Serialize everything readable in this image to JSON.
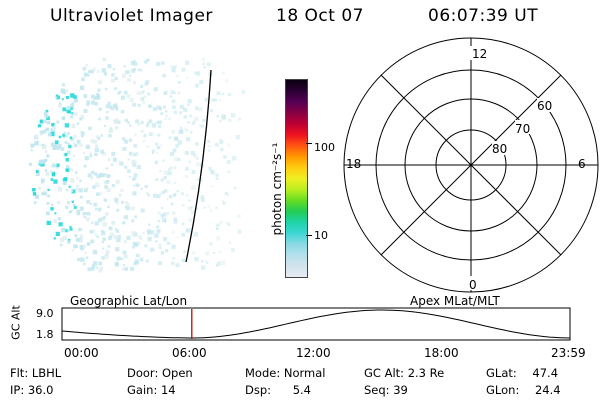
{
  "header": {
    "title": "Ultraviolet Imager",
    "date": "18 Oct 07",
    "time": "06:07:39 UT"
  },
  "colorbar": {
    "label": "photon cm⁻²s⁻¹",
    "ticks": [
      "100",
      "10"
    ],
    "scale": "log",
    "colors": [
      "#e6ebf2",
      "#d2e4ec",
      "#b4e0ea",
      "#8ad9e6",
      "#3ed6d4",
      "#1fd3a8",
      "#22cc55",
      "#66dd22",
      "#bbee22",
      "#eeee22",
      "#ffcc11",
      "#ff9900",
      "#ff5511",
      "#ee1122",
      "#bb0033",
      "#880044",
      "#550055",
      "#2a0033",
      "#0a0010"
    ]
  },
  "polar_plot": {
    "top_label": "12",
    "bottom_label": "0",
    "left_label": "18",
    "right_label": "6",
    "rings": [
      "80",
      "70",
      "60"
    ]
  },
  "timeline": {
    "left_header": "Geographic Lat/Lon",
    "right_header": "Apex MLat/MLT",
    "y_axis_label": "GC Alt",
    "y_ticks": [
      "9.0",
      "1.8"
    ],
    "x_ticks": [
      "00:00",
      "06:00",
      "12:00",
      "18:00",
      "23:59"
    ],
    "marker_time_hours": 6.13
  },
  "info": [
    {
      "label": "Flt:",
      "value": "LBHL"
    },
    {
      "label": "Door:",
      "value": "Open"
    },
    {
      "label": "Mode:",
      "value": "Normal"
    },
    {
      "label": "GC Alt:",
      "value": "2.3 Re"
    },
    {
      "label": "GLat:",
      "value": "47.4"
    },
    {
      "label": "IP:",
      "value": "36.0"
    },
    {
      "label": "Gain:",
      "value": "14"
    },
    {
      "label": "Dsp:",
      "value": "5.4"
    },
    {
      "label": "Seq:",
      "value": "39"
    },
    {
      "label": "GLon:",
      "value": "24.4"
    }
  ],
  "colors": {
    "cyan_high": "#1fd8d8",
    "cyan_low": "#bfe6ee",
    "marker": "#cc0000"
  }
}
